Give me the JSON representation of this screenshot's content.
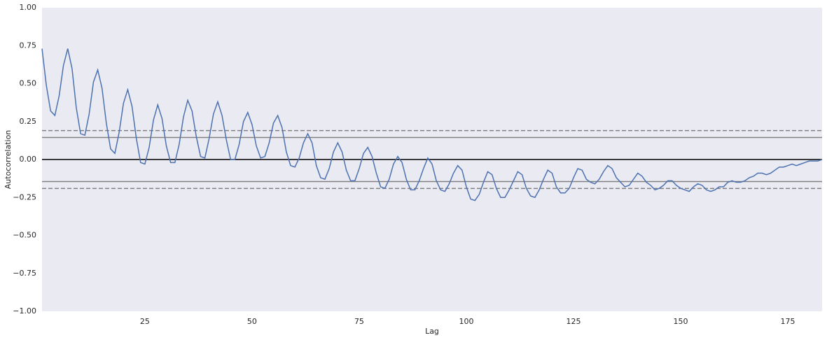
{
  "chart_data": {
    "type": "line",
    "xlabel": "Lag",
    "ylabel": "Autocorrelation",
    "x": [
      1,
      2,
      3,
      4,
      5,
      6,
      7,
      8,
      9,
      10,
      11,
      12,
      13,
      14,
      15,
      16,
      17,
      18,
      19,
      20,
      21,
      22,
      23,
      24,
      25,
      26,
      27,
      28,
      29,
      30,
      31,
      32,
      33,
      34,
      35,
      36,
      37,
      38,
      39,
      40,
      41,
      42,
      43,
      44,
      45,
      46,
      47,
      48,
      49,
      50,
      51,
      52,
      53,
      54,
      55,
      56,
      57,
      58,
      59,
      60,
      61,
      62,
      63,
      64,
      65,
      66,
      67,
      68,
      69,
      70,
      71,
      72,
      73,
      74,
      75,
      76,
      77,
      78,
      79,
      80,
      81,
      82,
      83,
      84,
      85,
      86,
      87,
      88,
      89,
      90,
      91,
      92,
      93,
      94,
      95,
      96,
      97,
      98,
      99,
      100,
      101,
      102,
      103,
      104,
      105,
      106,
      107,
      108,
      109,
      110,
      111,
      112,
      113,
      114,
      115,
      116,
      117,
      118,
      119,
      120,
      121,
      122,
      123,
      124,
      125,
      126,
      127,
      128,
      129,
      130,
      131,
      132,
      133,
      134,
      135,
      136,
      137,
      138,
      139,
      140,
      141,
      142,
      143,
      144,
      145,
      146,
      147,
      148,
      149,
      150,
      151,
      152,
      153,
      154,
      155,
      156,
      157,
      158,
      159,
      160,
      161,
      162,
      163,
      164,
      165,
      166,
      167,
      168,
      169,
      170,
      171,
      172,
      173,
      174,
      175,
      176,
      177,
      178,
      179,
      180,
      181,
      182,
      183
    ],
    "values": [
      0.73,
      0.49,
      0.32,
      0.29,
      0.42,
      0.62,
      0.73,
      0.6,
      0.34,
      0.17,
      0.16,
      0.3,
      0.51,
      0.59,
      0.47,
      0.24,
      0.07,
      0.04,
      0.18,
      0.37,
      0.46,
      0.35,
      0.14,
      -0.02,
      -0.03,
      0.08,
      0.26,
      0.36,
      0.27,
      0.09,
      -0.02,
      -0.02,
      0.1,
      0.28,
      0.39,
      0.32,
      0.15,
      0.02,
      0.01,
      0.14,
      0.3,
      0.38,
      0.29,
      0.13,
      0.0,
      0.0,
      0.1,
      0.25,
      0.31,
      0.23,
      0.09,
      0.01,
      0.02,
      0.11,
      0.24,
      0.29,
      0.21,
      0.05,
      -0.04,
      -0.05,
      0.01,
      0.11,
      0.17,
      0.11,
      -0.04,
      -0.12,
      -0.13,
      -0.06,
      0.05,
      0.11,
      0.05,
      -0.07,
      -0.14,
      -0.14,
      -0.06,
      0.04,
      0.08,
      0.02,
      -0.09,
      -0.18,
      -0.19,
      -0.13,
      -0.03,
      0.02,
      -0.02,
      -0.13,
      -0.2,
      -0.2,
      -0.14,
      -0.06,
      0.01,
      -0.03,
      -0.14,
      -0.2,
      -0.21,
      -0.16,
      -0.09,
      -0.04,
      -0.07,
      -0.18,
      -0.26,
      -0.27,
      -0.23,
      -0.15,
      -0.08,
      -0.1,
      -0.19,
      -0.25,
      -0.25,
      -0.2,
      -0.14,
      -0.08,
      -0.1,
      -0.19,
      -0.24,
      -0.25,
      -0.2,
      -0.13,
      -0.07,
      -0.09,
      -0.18,
      -0.22,
      -0.22,
      -0.19,
      -0.12,
      -0.06,
      -0.07,
      -0.13,
      -0.15,
      -0.16,
      -0.13,
      -0.08,
      -0.04,
      -0.06,
      -0.12,
      -0.15,
      -0.18,
      -0.17,
      -0.13,
      -0.09,
      -0.11,
      -0.15,
      -0.17,
      -0.2,
      -0.19,
      -0.17,
      -0.14,
      -0.14,
      -0.17,
      -0.19,
      -0.2,
      -0.21,
      -0.18,
      -0.16,
      -0.17,
      -0.2,
      -0.21,
      -0.2,
      -0.18,
      -0.18,
      -0.15,
      -0.14,
      -0.15,
      -0.15,
      -0.14,
      -0.12,
      -0.11,
      -0.09,
      -0.09,
      -0.1,
      -0.09,
      -0.07,
      -0.05,
      -0.05,
      -0.04,
      -0.03,
      -0.04,
      -0.03,
      -0.02,
      -0.01,
      -0.01,
      -0.01,
      0.0
    ],
    "color": "#4c72b0",
    "xlim": [
      1,
      183
    ],
    "ylim": [
      -1,
      1
    ],
    "xticks": [
      25,
      50,
      75,
      100,
      125,
      150,
      175
    ],
    "yticks": [
      {
        "value": -1,
        "label": "−1.00"
      },
      {
        "value": -0.75,
        "label": "−0.75"
      },
      {
        "value": -0.5,
        "label": "−0.50"
      },
      {
        "value": -0.25,
        "label": "−0.25"
      },
      {
        "value": 0,
        "label": "0.00"
      },
      {
        "value": 0.25,
        "label": "0.25"
      },
      {
        "value": 0.5,
        "label": "0.50"
      },
      {
        "value": 0.75,
        "label": "0.75"
      },
      {
        "value": 1,
        "label": "1.00"
      }
    ],
    "grid": false,
    "reference_lines": [
      {
        "value": 0.1904,
        "color": "#808080",
        "style": "dashed"
      },
      {
        "value": 0.1449,
        "color": "#808080",
        "style": "solid"
      },
      {
        "value": 0,
        "color": "#000000",
        "style": "solid"
      },
      {
        "value": -0.1449,
        "color": "#808080",
        "style": "solid"
      },
      {
        "value": -0.1904,
        "color": "#808080",
        "style": "dashed"
      }
    ]
  }
}
